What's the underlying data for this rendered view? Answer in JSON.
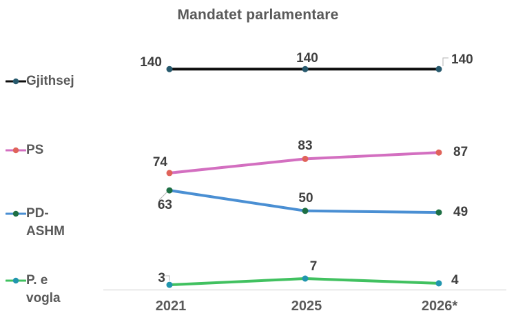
{
  "page": {
    "background": "#ffffff"
  },
  "chart_data": {
    "type": "line",
    "title": "Mandatet parlamentare",
    "x": [
      "2021",
      "2025",
      "2026*"
    ],
    "series": [
      {
        "name": "Gjithsej",
        "label_lines": [
          "Gjithsej"
        ],
        "values": [
          140,
          140,
          140
        ],
        "line_color": "#0d0d0d",
        "dot_color": "#27596d"
      },
      {
        "name": "PS",
        "label_lines": [
          "PS"
        ],
        "values": [
          74,
          83,
          87
        ],
        "line_color": "#d36fc0",
        "dot_color": "#e0635a"
      },
      {
        "name": "PD-ASHM",
        "label_lines": [
          "PD-",
          "ASHM"
        ],
        "values": [
          63,
          50,
          49
        ],
        "line_color": "#4a8fd3",
        "dot_color": "#1d6f44"
      },
      {
        "name": "P. e vogla",
        "label_lines": [
          "P. e",
          "vogla"
        ],
        "values": [
          3,
          7,
          4
        ],
        "line_color": "#41c160",
        "dot_color": "#2196ae"
      }
    ],
    "ylim": [
      0,
      140
    ],
    "grid": false,
    "legend_position": "left",
    "axis_color": "#d9d9d9",
    "leader_color": "#b3b3b3",
    "title_color": "#595959",
    "label_color": "#595959",
    "value_color": "#3f3f3f"
  }
}
